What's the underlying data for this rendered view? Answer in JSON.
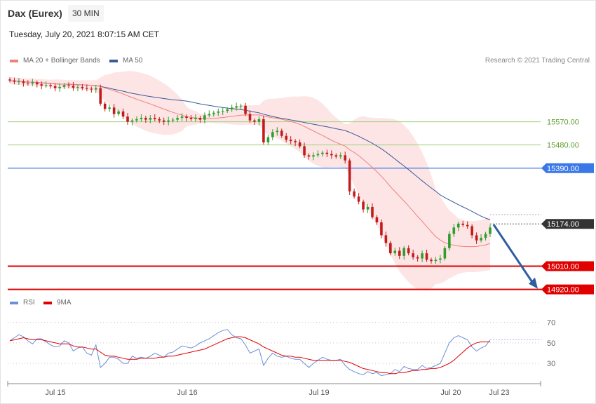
{
  "header": {
    "title": "Dax (Eurex)",
    "timeframe": "30 MIN",
    "datetime": "Tuesday, July 20, 2021 8:07:15 AM CET",
    "credit": "Research © 2021 Trading Central"
  },
  "legend": {
    "ma20": "MA 20 + Bollinger Bands",
    "ma50": "MA 50",
    "rsi": "RSI",
    "ma9": "9MA"
  },
  "colors": {
    "bull": "#2e9e2e",
    "bear": "#c21b1b",
    "ma20": "#f08080",
    "band": "#fde1e1",
    "ma50": "#3a5a98",
    "rsi": "#6b8fd9",
    "ma9": "#e00000",
    "support": "#e00000",
    "resistance": "#3b78e7",
    "green_level": "#9fd07a",
    "price": "#333333",
    "arrow": "#2e5e9e"
  },
  "chart_data": [
    {
      "type": "line",
      "title": "Dax (Eurex) 30 MIN",
      "x_ticks": [
        "Jul 15",
        "Jul 16",
        "Jul 19",
        "Jul 20",
        "Jul 23"
      ],
      "ylim": [
        14900,
        15770
      ],
      "levels": [
        {
          "value": 15570.0,
          "label": "15570.00",
          "kind": "resistance-minor"
        },
        {
          "value": 15480.0,
          "label": "15480.00",
          "kind": "resistance-minor"
        },
        {
          "value": 15390.0,
          "label": "15390.00",
          "kind": "resistance"
        },
        {
          "value": 15174.0,
          "label": "15174.00",
          "kind": "price"
        },
        {
          "value": 15010.0,
          "label": "15010.00",
          "kind": "support"
        },
        {
          "value": 14920.0,
          "label": "14920.00",
          "kind": "support"
        }
      ],
      "close_series": [
        15730,
        15725,
        15726,
        15720,
        15718,
        15722,
        15715,
        15710,
        15712,
        15708,
        15700,
        15705,
        15712,
        15710,
        15702,
        15705,
        15700,
        15698,
        15695,
        15700,
        15640,
        15620,
        15625,
        15600,
        15610,
        15590,
        15570,
        15575,
        15580,
        15585,
        15578,
        15585,
        15580,
        15575,
        15570,
        15575,
        15578,
        15585,
        15590,
        15585,
        15580,
        15585,
        15578,
        15595,
        15600,
        15605,
        15610,
        15612,
        15618,
        15625,
        15630,
        15632,
        15600,
        15575,
        15570,
        15580,
        15490,
        15510,
        15530,
        15535,
        15515,
        15500,
        15495,
        15490,
        15475,
        15440,
        15435,
        15440,
        15445,
        15450,
        15445,
        15440,
        15435,
        15440,
        15420,
        15300,
        15280,
        15260,
        15230,
        15240,
        15200,
        15180,
        15130,
        15100,
        15060,
        15070,
        15050,
        15080,
        15060,
        15045,
        15040,
        15060,
        15035,
        15030,
        15035,
        15040,
        15080,
        15135,
        15160,
        15175,
        15170,
        15165,
        15130,
        15110,
        15120,
        15135,
        15160
      ]
    },
    {
      "type": "line",
      "title": "RSI",
      "ylim": [
        15,
        80
      ],
      "y_ticks": [
        "70",
        "50",
        "30"
      ],
      "series": [
        {
          "name": "RSI",
          "values": [
            52,
            55,
            58,
            56,
            52,
            49,
            54,
            54,
            51,
            48,
            46,
            47,
            52,
            50,
            42,
            45,
            46,
            40,
            38,
            48,
            26,
            30,
            36,
            36,
            34,
            30,
            30,
            37,
            35,
            36,
            35,
            37,
            40,
            38,
            36,
            40,
            41,
            44,
            47,
            46,
            45,
            47,
            50,
            52,
            54,
            57,
            60,
            62,
            63,
            58,
            55,
            54,
            48,
            40,
            42,
            44,
            28,
            35,
            40,
            37,
            36,
            37,
            35,
            34,
            34,
            30,
            26,
            30,
            33,
            36,
            34,
            33,
            33,
            34,
            28,
            24,
            22,
            20,
            19,
            22,
            20,
            21,
            18,
            19,
            20,
            24,
            22,
            27,
            25,
            24,
            24,
            28,
            25,
            26,
            28,
            30,
            40,
            50,
            55,
            57,
            55,
            53,
            46,
            42,
            45,
            47,
            53
          ]
        },
        {
          "name": "9MA",
          "values": [
            52,
            53,
            54,
            55,
            54,
            53,
            53,
            53,
            52,
            51,
            50,
            49,
            49,
            49,
            47,
            46,
            46,
            45,
            44,
            44,
            41,
            38,
            37,
            37,
            36,
            35,
            34,
            34,
            34,
            35,
            35,
            35,
            35,
            36,
            36,
            37,
            37,
            38,
            39,
            40,
            41,
            42,
            43,
            44,
            46,
            48,
            50,
            52,
            54,
            55,
            56,
            56,
            55,
            53,
            51,
            49,
            46,
            44,
            42,
            40,
            38,
            37,
            37,
            36,
            36,
            35,
            34,
            33,
            33,
            33,
            33,
            33,
            33,
            33,
            32,
            31,
            29,
            27,
            25,
            24,
            23,
            22,
            21,
            21,
            20,
            20,
            21,
            21,
            22,
            23,
            23,
            24,
            24,
            25,
            25,
            26,
            28,
            30,
            33,
            37,
            41,
            45,
            48,
            50,
            51,
            51,
            51
          ]
        }
      ]
    }
  ]
}
